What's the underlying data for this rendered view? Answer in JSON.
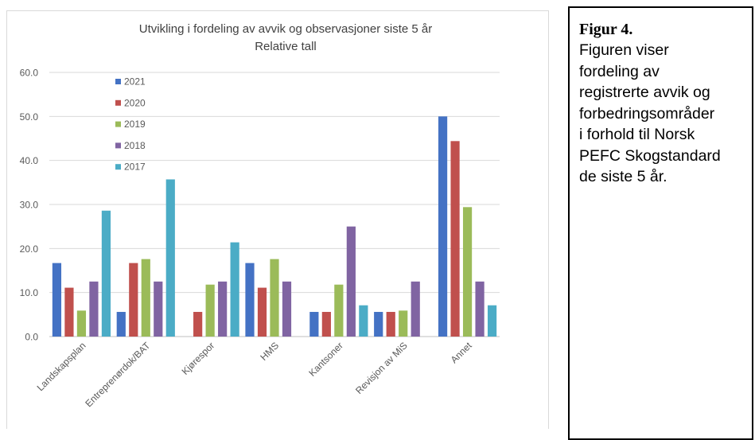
{
  "chart_data": {
    "type": "bar",
    "title": "Utvikling i fordeling av avvik og observasjoner siste 5 år",
    "subtitle": "Relative tall",
    "categories": [
      "Landskapsplan",
      "Entreprenørdok/BAT",
      "Kjørespor",
      "HMS",
      "Kantsoner",
      "Revisjon av MiS",
      "Annet"
    ],
    "y_ticks": [
      "0.0",
      "10.0",
      "20.0",
      "30.0",
      "40.0",
      "50.0",
      "60.0"
    ],
    "ylim": [
      0,
      60
    ],
    "grid": true,
    "legend_position": "top-left",
    "series": [
      {
        "name": "2021",
        "color": "#4472c4",
        "values": [
          16.7,
          5.6,
          0,
          16.7,
          5.6,
          5.6,
          50.0
        ]
      },
      {
        "name": "2020",
        "color": "#c0504d",
        "values": [
          11.1,
          16.7,
          5.6,
          11.1,
          5.6,
          5.6,
          44.4
        ]
      },
      {
        "name": "2019",
        "color": "#9bbb59",
        "values": [
          5.9,
          17.6,
          11.8,
          17.6,
          11.8,
          5.9,
          29.4
        ]
      },
      {
        "name": "2018",
        "color": "#8064a2",
        "values": [
          12.5,
          12.5,
          12.5,
          12.5,
          25.0,
          12.5,
          12.5
        ]
      },
      {
        "name": "2017",
        "color": "#4bacc6",
        "values": [
          28.6,
          35.7,
          21.4,
          0,
          7.1,
          0,
          7.1
        ]
      }
    ]
  },
  "caption": {
    "title": "Figur 4.",
    "lines": [
      "Figuren viser",
      "fordeling av",
      "registrerte avvik og",
      "forbedringsområder",
      "i forhold til Norsk",
      "PEFC Skogstandard",
      "de siste 5 år."
    ]
  }
}
